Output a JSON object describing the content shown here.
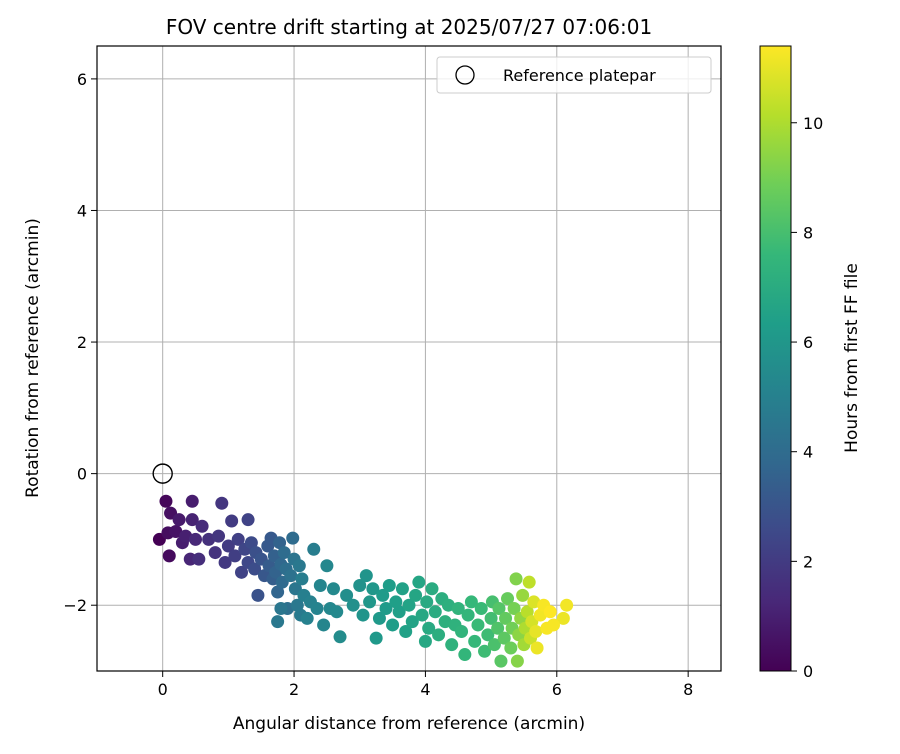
{
  "chart_data": {
    "type": "scatter",
    "title": "FOV centre drift starting at 2025/07/27 07:06:01",
    "xlabel": "Angular distance from reference (arcmin)",
    "ylabel": "Rotation from reference (arcmin)",
    "xlim": [
      -1,
      8.5
    ],
    "ylim": [
      -3,
      6.5
    ],
    "xticks": [
      0,
      2,
      4,
      6,
      8
    ],
    "yticks": [
      -2,
      0,
      2,
      4,
      6
    ],
    "xtick_labels": [
      "0",
      "2",
      "4",
      "6",
      "8"
    ],
    "ytick_labels": [
      "−2",
      "0",
      "2",
      "4",
      "6"
    ],
    "grid": true,
    "legend": {
      "placement": "top-right",
      "entries": [
        {
          "label": "Reference platepar",
          "marker": "open-circle"
        }
      ]
    },
    "reference_point": {
      "x": 0,
      "y": 0
    },
    "colorbar": {
      "label": "Hours from first FF file",
      "colormap": "viridis",
      "range": [
        0,
        11.4
      ],
      "ticks": [
        0,
        2,
        4,
        6,
        8,
        10
      ],
      "tick_labels": [
        "0",
        "2",
        "4",
        "6",
        "8",
        "10"
      ]
    },
    "colors": {
      "viridis": [
        "#440154",
        "#482878",
        "#3e4989",
        "#31688e",
        "#26828e",
        "#1f9e89",
        "#35b779",
        "#6ece58",
        "#b5de2b",
        "#fde725"
      ]
    },
    "series": [
      {
        "color_by": "hours",
        "points": [
          [
            -0.05,
            -1.0,
            0.0
          ],
          [
            0.05,
            -0.42,
            0.2
          ],
          [
            0.08,
            -0.9,
            0.4
          ],
          [
            0.12,
            -0.6,
            0.5
          ],
          [
            0.2,
            -0.88,
            0.6
          ],
          [
            0.25,
            -0.7,
            0.8
          ],
          [
            0.3,
            -1.05,
            0.9
          ],
          [
            0.35,
            -0.95,
            1.0
          ],
          [
            0.45,
            -0.42,
            0.9
          ],
          [
            0.45,
            -0.7,
            1.1
          ],
          [
            0.1,
            -1.25,
            0.3
          ],
          [
            0.42,
            -1.3,
            1.2
          ],
          [
            0.5,
            -1.0,
            1.3
          ],
          [
            0.6,
            -0.8,
            1.4
          ],
          [
            0.55,
            -1.3,
            1.5
          ],
          [
            0.7,
            -1.0,
            1.6
          ],
          [
            0.8,
            -1.2,
            1.7
          ],
          [
            0.85,
            -0.95,
            1.8
          ],
          [
            0.9,
            -0.45,
            1.8
          ],
          [
            0.95,
            -1.35,
            1.9
          ],
          [
            1.0,
            -1.1,
            2.0
          ],
          [
            1.05,
            -0.72,
            2.0
          ],
          [
            1.1,
            -1.25,
            2.1
          ],
          [
            1.15,
            -1.0,
            2.2
          ],
          [
            1.2,
            -1.5,
            2.3
          ],
          [
            1.25,
            -1.15,
            2.4
          ],
          [
            1.3,
            -0.7,
            2.3
          ],
          [
            1.3,
            -1.35,
            2.5
          ],
          [
            1.35,
            -1.05,
            2.6
          ],
          [
            1.4,
            -1.45,
            2.7
          ],
          [
            1.42,
            -1.2,
            2.8
          ],
          [
            1.45,
            -1.85,
            2.9
          ],
          [
            1.5,
            -1.3,
            3.0
          ],
          [
            1.55,
            -1.55,
            3.1
          ],
          [
            1.6,
            -1.1,
            3.2
          ],
          [
            1.62,
            -1.4,
            3.3
          ],
          [
            1.65,
            -0.98,
            3.2
          ],
          [
            1.68,
            -1.6,
            3.4
          ],
          [
            1.7,
            -1.25,
            3.5
          ],
          [
            1.72,
            -1.5,
            3.6
          ],
          [
            1.75,
            -1.8,
            3.7
          ],
          [
            1.78,
            -1.05,
            3.6
          ],
          [
            1.8,
            -1.38,
            3.8
          ],
          [
            1.82,
            -1.65,
            3.9
          ],
          [
            1.85,
            -1.2,
            4.0
          ],
          [
            1.88,
            -1.45,
            4.1
          ],
          [
            1.9,
            -2.05,
            4.2
          ],
          [
            1.95,
            -1.55,
            4.3
          ],
          [
            1.98,
            -0.98,
            4.0
          ],
          [
            2.0,
            -1.3,
            4.4
          ],
          [
            2.02,
            -1.75,
            4.5
          ],
          [
            2.05,
            -2.0,
            4.6
          ],
          [
            2.08,
            -1.4,
            4.6
          ],
          [
            2.1,
            -2.15,
            4.7
          ],
          [
            2.12,
            -1.6,
            4.8
          ],
          [
            1.75,
            -2.25,
            4.6
          ],
          [
            1.8,
            -2.05,
            4.5
          ],
          [
            2.15,
            -1.85,
            4.9
          ],
          [
            2.2,
            -2.2,
            5.0
          ],
          [
            2.25,
            -1.95,
            5.0
          ],
          [
            2.3,
            -1.15,
            4.8
          ],
          [
            2.35,
            -2.05,
            5.1
          ],
          [
            2.4,
            -1.7,
            5.2
          ],
          [
            2.45,
            -2.3,
            5.2
          ],
          [
            2.5,
            -1.4,
            5.3
          ],
          [
            2.55,
            -2.05,
            5.3
          ],
          [
            2.6,
            -1.75,
            5.4
          ],
          [
            2.65,
            -2.1,
            5.4
          ],
          [
            2.7,
            -2.48,
            5.5
          ],
          [
            2.8,
            -1.85,
            5.6
          ],
          [
            2.9,
            -2.0,
            5.7
          ],
          [
            3.0,
            -1.7,
            5.8
          ],
          [
            3.05,
            -2.15,
            5.9
          ],
          [
            3.1,
            -1.55,
            5.9
          ],
          [
            3.15,
            -1.95,
            6.0
          ],
          [
            3.2,
            -1.75,
            6.0
          ],
          [
            3.25,
            -2.5,
            6.1
          ],
          [
            3.3,
            -2.2,
            6.1
          ],
          [
            3.35,
            -1.85,
            6.2
          ],
          [
            3.4,
            -2.05,
            6.2
          ],
          [
            3.45,
            -1.7,
            6.3
          ],
          [
            3.5,
            -2.3,
            6.3
          ],
          [
            3.55,
            -1.95,
            6.4
          ],
          [
            3.6,
            -2.1,
            6.4
          ],
          [
            3.65,
            -1.75,
            6.5
          ],
          [
            3.7,
            -2.4,
            6.5
          ],
          [
            3.75,
            -2.0,
            6.6
          ],
          [
            3.8,
            -2.25,
            6.6
          ],
          [
            3.85,
            -1.85,
            6.7
          ],
          [
            3.9,
            -1.65,
            6.7
          ],
          [
            3.95,
            -2.15,
            6.8
          ],
          [
            4.0,
            -2.55,
            6.8
          ],
          [
            4.02,
            -1.95,
            6.9
          ],
          [
            4.05,
            -2.35,
            6.9
          ],
          [
            4.1,
            -1.75,
            7.0
          ],
          [
            4.15,
            -2.1,
            7.0
          ],
          [
            4.2,
            -2.45,
            7.1
          ],
          [
            4.25,
            -1.9,
            7.1
          ],
          [
            4.3,
            -2.25,
            7.2
          ],
          [
            4.35,
            -2.0,
            7.2
          ],
          [
            4.4,
            -2.6,
            7.3
          ],
          [
            4.45,
            -2.3,
            7.3
          ],
          [
            4.5,
            -2.05,
            7.4
          ],
          [
            4.55,
            -2.4,
            7.4
          ],
          [
            4.6,
            -2.75,
            7.5
          ],
          [
            4.65,
            -2.15,
            7.5
          ],
          [
            4.7,
            -1.95,
            7.6
          ],
          [
            4.75,
            -2.55,
            7.6
          ],
          [
            4.8,
            -2.3,
            7.7
          ],
          [
            4.85,
            -2.05,
            7.7
          ],
          [
            4.9,
            -2.7,
            7.8
          ],
          [
            4.95,
            -2.45,
            7.8
          ],
          [
            5.0,
            -2.2,
            7.9
          ],
          [
            5.02,
            -1.95,
            8.0
          ],
          [
            5.05,
            -2.6,
            8.1
          ],
          [
            5.1,
            -2.35,
            8.2
          ],
          [
            5.12,
            -2.05,
            8.3
          ],
          [
            5.15,
            -2.85,
            8.4
          ],
          [
            5.2,
            -2.5,
            8.5
          ],
          [
            5.22,
            -2.2,
            8.6
          ],
          [
            5.25,
            -1.9,
            8.7
          ],
          [
            5.3,
            -2.65,
            8.8
          ],
          [
            5.32,
            -2.35,
            8.9
          ],
          [
            5.35,
            -2.05,
            9.0
          ],
          [
            5.38,
            -1.6,
            9.2
          ],
          [
            5.4,
            -2.85,
            9.3
          ],
          [
            5.42,
            -2.45,
            9.4
          ],
          [
            5.45,
            -2.2,
            9.5
          ],
          [
            5.48,
            -1.85,
            9.6
          ],
          [
            5.5,
            -2.6,
            9.8
          ],
          [
            5.52,
            -2.35,
            10.0
          ],
          [
            5.55,
            -2.1,
            10.2
          ],
          [
            5.58,
            -1.65,
            10.3
          ],
          [
            5.6,
            -2.5,
            10.5
          ],
          [
            5.62,
            -2.25,
            10.7
          ],
          [
            5.65,
            -1.95,
            10.8
          ],
          [
            5.68,
            -2.4,
            11.0
          ],
          [
            5.7,
            -2.65,
            11.1
          ],
          [
            5.75,
            -2.15,
            11.2
          ],
          [
            5.8,
            -2.0,
            11.3
          ],
          [
            5.85,
            -2.35,
            11.3
          ],
          [
            5.9,
            -2.1,
            11.4
          ],
          [
            6.15,
            -2.0,
            11.2
          ],
          [
            6.1,
            -2.2,
            11.1
          ],
          [
            5.95,
            -2.3,
            11.3
          ]
        ]
      }
    ]
  }
}
